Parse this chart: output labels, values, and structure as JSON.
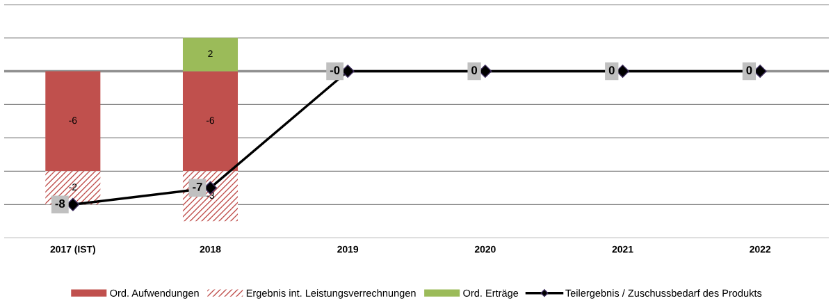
{
  "chart_data": {
    "type": "bar",
    "stacked": true,
    "categories": [
      "2017 (IST)",
      "2018",
      "2019",
      "2020",
      "2021",
      "2022"
    ],
    "series": [
      {
        "name": "Ord. Aufwendungen",
        "color": "#c0504d",
        "values": [
          -6,
          -6,
          null,
          null,
          null,
          null
        ]
      },
      {
        "name": "Ergebnis int. Leistungsverrechnungen",
        "color": "#c0504d",
        "values": [
          -2,
          -3,
          null,
          null,
          null,
          null
        ]
      },
      {
        "name": "Ord. Erträge",
        "color": "#9bbb59",
        "values": [
          null,
          2,
          null,
          null,
          null,
          null
        ]
      },
      {
        "name": "Teilergebnis / Zuschussbedarf des Produkts",
        "type": "line",
        "color": "#000000",
        "marker": "diamond",
        "values": [
          -8,
          -7,
          0,
          0,
          0,
          0
        ],
        "value_labels": [
          "-8",
          "-7",
          "-0",
          "0",
          "0",
          "0"
        ]
      }
    ],
    "data_labels": true,
    "ylim": [
      -10,
      4
    ],
    "yticks": [
      {
        "value": -10,
        "label": null
      },
      {
        "value": -8,
        "label": null
      },
      {
        "value": -6,
        "label": null
      },
      {
        "value": -4,
        "label": null
      },
      {
        "value": -2,
        "label": null
      },
      {
        "value": 0,
        "label": null
      },
      {
        "value": 2,
        "label": null
      },
      {
        "value": 4,
        "label": null
      }
    ],
    "tick_labels": "x",
    "grid": "y",
    "legend": "bottom"
  }
}
